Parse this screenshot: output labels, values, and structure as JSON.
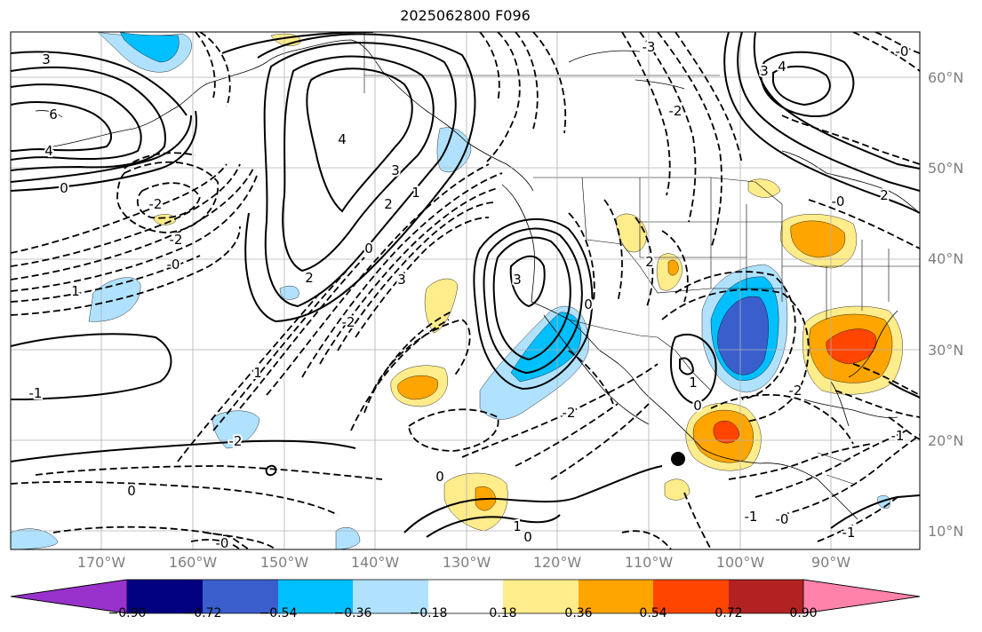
{
  "title": "2025062800 F096",
  "latitude_labels": [
    "60°N",
    "50°N",
    "40°N",
    "30°N",
    "20°N",
    "10°N"
  ],
  "longitude_labels": [
    "170°W",
    "160°W",
    "150°W",
    "140°W",
    "130°W",
    "120°W",
    "110°W",
    "100°W",
    "90°W"
  ],
  "colorbar": {
    "tick_labels": [
      "−0.90",
      "−0.72",
      "−0.54",
      "−0.36",
      "−0.18",
      "0.18",
      "0.36",
      "0.54",
      "0.72",
      "0.90"
    ],
    "colors": [
      "#9932cc",
      "#000080",
      "#3a5fcd",
      "#00bfff",
      "#b0e2ff",
      "#ffffff",
      "#ffec8b",
      "#ffa500",
      "#ff4500",
      "#b22222",
      "#ff82ab"
    ]
  },
  "contour_labels": [
    {
      "text": "3"
    },
    {
      "text": "6"
    },
    {
      "text": "4"
    },
    {
      "text": "0"
    },
    {
      "text": "-2"
    },
    {
      "text": "-2"
    },
    {
      "text": "-0"
    },
    {
      "text": "1"
    },
    {
      "text": "4"
    },
    {
      "text": "3"
    },
    {
      "text": "2"
    },
    {
      "text": "1"
    },
    {
      "text": "2"
    },
    {
      "text": "0"
    },
    {
      "text": "3"
    },
    {
      "text": "3"
    },
    {
      "text": "-2"
    },
    {
      "text": "1"
    },
    {
      "text": "-2"
    },
    {
      "text": "0"
    },
    {
      "text": "-2"
    },
    {
      "text": "0"
    },
    {
      "text": "1"
    },
    {
      "text": "0"
    },
    {
      "text": "0"
    },
    {
      "text": "-2"
    },
    {
      "text": "-1"
    },
    {
      "text": "-0"
    },
    {
      "text": "-1"
    },
    {
      "text": "3"
    },
    {
      "text": "4"
    },
    {
      "text": "2"
    },
    {
      "text": "-0"
    },
    {
      "text": "-3"
    },
    {
      "text": "-2"
    },
    {
      "text": "2"
    },
    {
      "text": "-0"
    },
    {
      "text": "-0"
    },
    {
      "text": "-1"
    },
    {
      "text": "0"
    },
    {
      "text": "1"
    },
    {
      "text": "-1"
    }
  ],
  "marker": "storm-center-dot"
}
